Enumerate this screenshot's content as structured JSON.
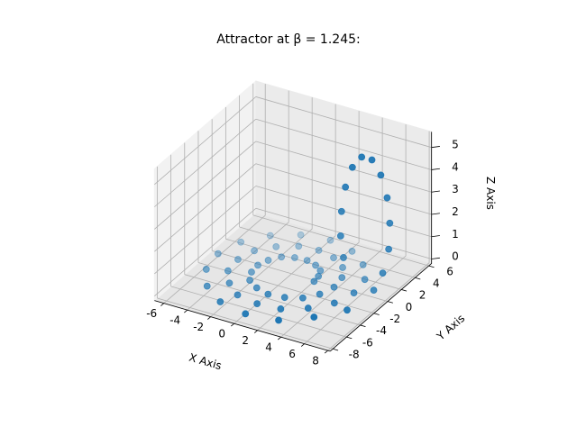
{
  "chart_data": {
    "type": "scatter3d",
    "title": "Attractor at β = 1.245:",
    "xlabel": "X Axis",
    "ylabel": "Y Axis",
    "zlabel": "Z Axis",
    "color": "#1f77b4",
    "grid": true,
    "xlim": [
      -6.8,
      8.2
    ],
    "ylim": [
      -8.4,
      6.4
    ],
    "zlim": [
      -0.2,
      5.7
    ],
    "xticks": [
      -6,
      -4,
      -2,
      0,
      2,
      4,
      6,
      8
    ],
    "yticks": [
      -8,
      -6,
      -4,
      -2,
      0,
      2,
      4,
      6
    ],
    "zticks": [
      0,
      1,
      2,
      3,
      4,
      5
    ],
    "x": [
      2.5,
      2.4,
      2.1,
      1.4,
      0.5,
      -0.5,
      -1.4,
      -2.0,
      -2.3,
      -2.2,
      -1.7,
      -0.7,
      0.5,
      1.8,
      3.0,
      3.8,
      4.2,
      4.0,
      3.3,
      2.0,
      0.5,
      -1.1,
      -2.5,
      -3.6,
      -4.0,
      -3.8,
      -2.8,
      -1.4,
      0.5,
      2.4,
      4.1,
      5.4,
      5.9,
      5.6,
      4.4,
      2.7,
      0.5,
      -1.8,
      -3.7,
      -5.1,
      -5.7,
      -5.3,
      -4.0,
      -2.0,
      0.5,
      3.1,
      5.3,
      6.9,
      7.3,
      7.6,
      7.7,
      7.5,
      7.1,
      6.5,
      5.8,
      5.1,
      4.6,
      4.3,
      4.2,
      4.3,
      4.6
    ],
    "y": [
      -1.0,
      -0.2,
      0.6,
      1.1,
      1.4,
      1.3,
      0.9,
      0.0,
      -1.0,
      -2.1,
      -3.2,
      -3.9,
      -4.3,
      -4.1,
      -3.5,
      -2.4,
      -1.0,
      0.5,
      1.8,
      2.7,
      3.1,
      2.9,
      2.0,
      0.7,
      -1.0,
      -2.8,
      -4.3,
      -5.5,
      -5.9,
      -5.7,
      -4.6,
      -3.0,
      -1.0,
      1.1,
      2.9,
      4.2,
      4.8,
      4.4,
      3.2,
      1.3,
      -1.0,
      -3.4,
      -5.5,
      -7.0,
      -7.6,
      -7.2,
      -5.8,
      -3.7,
      -0.5,
      0.3,
      1.0,
      1.5,
      1.8,
      1.9,
      1.8,
      1.5,
      1.0,
      0.5,
      0.1,
      -0.2,
      -0.3
    ],
    "z": [
      0.1,
      0.1,
      0.1,
      0.1,
      0.1,
      0.1,
      0.1,
      0.1,
      0.1,
      0.1,
      0.1,
      0.1,
      0.1,
      0.1,
      0.1,
      0.1,
      0.1,
      0.1,
      0.1,
      0.1,
      0.1,
      0.1,
      0.1,
      0.1,
      0.1,
      0.1,
      0.1,
      0.1,
      0.1,
      0.1,
      0.1,
      0.1,
      0.1,
      0.1,
      0.1,
      0.1,
      0.1,
      0.1,
      0.1,
      0.1,
      0.1,
      0.1,
      0.1,
      0.1,
      0.1,
      0.1,
      0.2,
      0.2,
      0.3,
      0.9,
      1.8,
      2.8,
      3.8,
      4.7,
      5.3,
      5.4,
      5.0,
      4.2,
      3.2,
      2.2,
      1.3
    ]
  }
}
